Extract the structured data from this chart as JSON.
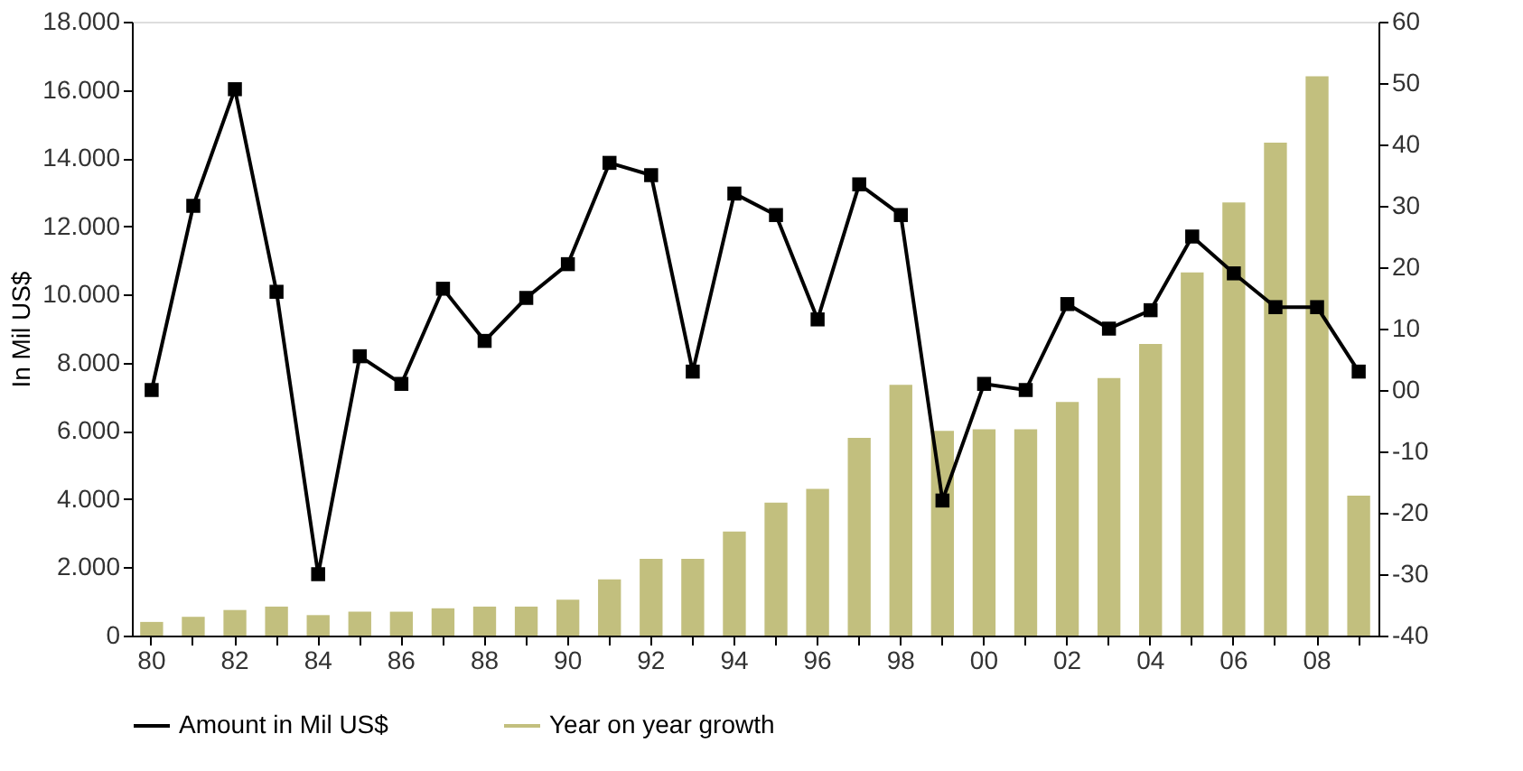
{
  "chart_data": {
    "type": "bar",
    "categories": [
      "80",
      null,
      "82",
      null,
      "84",
      null,
      "86",
      null,
      "88",
      null,
      "90",
      null,
      "92",
      null,
      "94",
      null,
      "96",
      null,
      "98",
      null,
      "00",
      null,
      "02",
      null,
      "04",
      null,
      "06",
      null,
      "08",
      null
    ],
    "series": [
      {
        "name": "Amount in Mil US$",
        "type": "line",
        "axis": "y2",
        "color": "#000000",
        "marker": "square",
        "values": [
          0,
          30,
          49,
          16,
          -30,
          5.5,
          1,
          16.5,
          8,
          15,
          20.5,
          37,
          35,
          3,
          32,
          28.5,
          11.5,
          33.5,
          28.5,
          -18,
          1,
          0,
          14,
          10,
          13,
          25,
          19,
          13.5,
          13.5,
          3
        ]
      },
      {
        "name": "Year on year growth",
        "color": "#c2bf7e",
        "values": [
          400,
          550,
          750,
          850,
          600,
          700,
          700,
          800,
          850,
          850,
          1050,
          1650,
          2250,
          2250,
          3050,
          3900,
          4300,
          5800,
          7350,
          6000,
          6050,
          6050,
          6850,
          7550,
          8550,
          10650,
          12700,
          14450,
          16400,
          4100
        ]
      }
    ],
    "ylabel": "In Mil US$",
    "ylim": [
      0,
      18000
    ],
    "yticks": [
      {
        "value": 0,
        "label": "0"
      },
      {
        "value": 2000,
        "label": "2.000"
      },
      {
        "value": 4000,
        "label": "4.000"
      },
      {
        "value": 6000,
        "label": "6.000"
      },
      {
        "value": 8000,
        "label": "8.000"
      },
      {
        "value": 10000,
        "label": "10.000"
      },
      {
        "value": 12000,
        "label": "12.000"
      },
      {
        "value": 14000,
        "label": "14.000"
      },
      {
        "value": 16000,
        "label": "16.000"
      },
      {
        "value": 18000,
        "label": "18.000"
      }
    ],
    "y2lim": [
      -40,
      60
    ],
    "y2ticks": [
      -40,
      -30,
      -20,
      -10,
      {
        "value": 0,
        "label": "00"
      },
      10,
      20,
      30,
      40,
      50,
      60
    ],
    "grid": false,
    "legend": "bottom"
  }
}
